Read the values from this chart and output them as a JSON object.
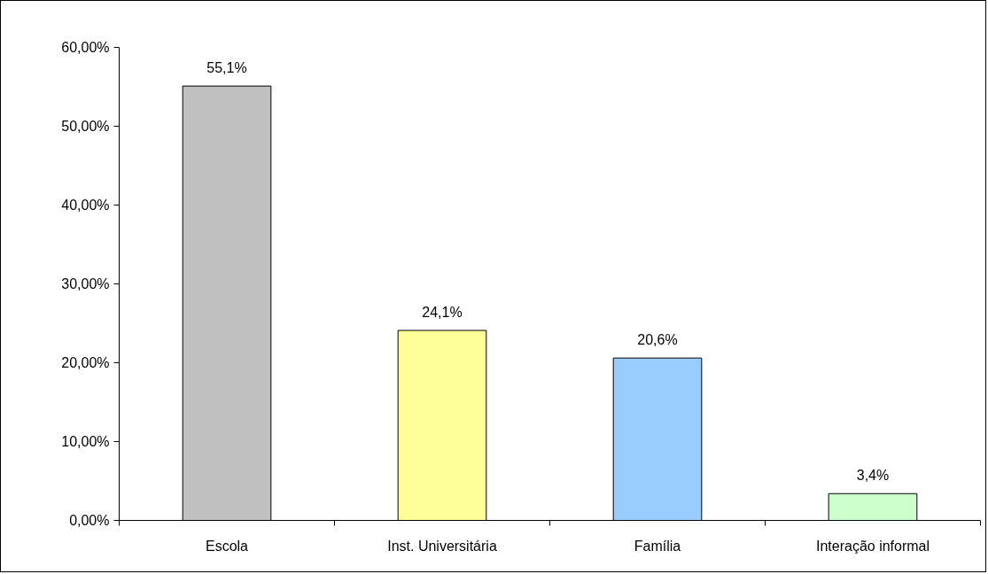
{
  "chart_data": {
    "type": "bar",
    "categories": [
      "Escola",
      "Inst. Universitária",
      "Família",
      "Interação informal"
    ],
    "values": [
      55.1,
      24.1,
      20.6,
      3.4
    ],
    "colors": [
      "#c0c0c0",
      "#ffff99",
      "#99ccff",
      "#ccffcc"
    ],
    "value_labels": [
      "55,1%",
      "24,1%",
      "20,6%",
      "3,4%"
    ],
    "ylim": [
      0,
      60
    ],
    "yticks": [
      {
        "value": 0,
        "label": "0,00%"
      },
      {
        "value": 10,
        "label": "10,00%"
      },
      {
        "value": 20,
        "label": "20,00%"
      },
      {
        "value": 30,
        "label": "30,00%"
      },
      {
        "value": 40,
        "label": "40,00%"
      },
      {
        "value": 50,
        "label": "50,00%"
      },
      {
        "value": 60,
        "label": "60,00%"
      }
    ]
  }
}
